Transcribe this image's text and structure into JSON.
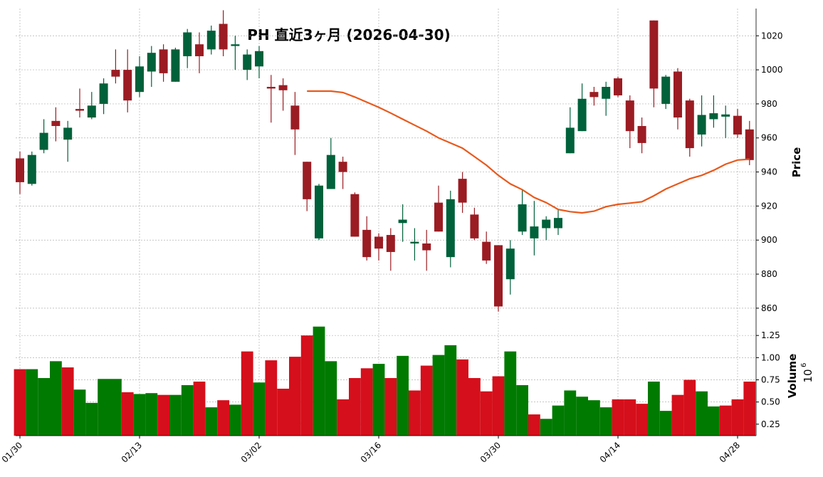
{
  "chart_data": {
    "type": "candlestick",
    "title": "PH  直近3ヶ月 (2026-04-30)",
    "ylabel": "Price",
    "volume_label": "Volume",
    "volume_scale": {
      "base": "10",
      "exponent": "6"
    },
    "x": [
      "01/30",
      null,
      null,
      null,
      null,
      null,
      null,
      null,
      null,
      null,
      "02/13",
      null,
      null,
      null,
      null,
      null,
      null,
      null,
      null,
      null,
      "03/02",
      null,
      null,
      null,
      null,
      null,
      null,
      null,
      null,
      null,
      "03/16",
      null,
      null,
      null,
      null,
      null,
      null,
      null,
      null,
      null,
      "03/30",
      null,
      null,
      null,
      null,
      null,
      null,
      null,
      null,
      null,
      "04/14",
      null,
      null,
      null,
      null,
      null,
      null,
      null,
      null,
      null,
      "04/28",
      null
    ],
    "open": [
      948,
      933,
      953,
      970,
      959,
      977,
      972,
      980,
      1000,
      1000,
      987,
      999,
      1012,
      993,
      1008,
      1015,
      1012,
      1027,
      1014,
      1000,
      1002,
      990,
      991,
      979,
      946,
      901,
      930,
      946,
      927,
      906,
      902,
      903,
      910,
      898,
      898,
      922,
      890,
      936,
      915,
      899,
      897,
      877,
      905,
      901,
      907,
      907,
      951,
      964,
      987,
      983,
      995,
      982,
      967,
      1029,
      980,
      999,
      982,
      962,
      971,
      972.5,
      973,
      965
    ],
    "high": [
      952,
      952,
      971,
      978,
      970,
      989,
      987,
      995,
      1012,
      1012,
      1008,
      1014,
      1015,
      1013,
      1024,
      1022,
      1026,
      1035,
      1020,
      1012,
      1014,
      997,
      995,
      987,
      946,
      933,
      960,
      949,
      928,
      914,
      904,
      907,
      921,
      907,
      906,
      932,
      929,
      940,
      919,
      905,
      897,
      900,
      930,
      923,
      914,
      918,
      978,
      992,
      990,
      993,
      996,
      985,
      972,
      1029,
      997,
      1001,
      983,
      985,
      985,
      979,
      977,
      970
    ],
    "low": [
      927,
      932,
      951,
      958,
      946,
      972,
      971,
      974,
      992,
      975,
      984,
      990,
      993,
      993,
      1001,
      998,
      1009,
      1008,
      1000,
      994,
      995,
      969,
      976,
      950,
      917,
      900,
      930,
      930,
      902,
      888,
      888,
      882,
      899,
      888,
      882,
      905,
      884,
      916,
      900,
      886,
      858,
      868,
      903,
      891,
      900,
      903,
      951,
      964,
      979,
      973,
      984,
      954,
      951,
      978,
      977,
      965,
      949,
      955,
      966,
      960,
      960,
      944
    ],
    "close": [
      934,
      950,
      963,
      967,
      966,
      976,
      979,
      992,
      996,
      982,
      1002,
      1010,
      998,
      1012,
      1022,
      1008,
      1023,
      1012,
      1015,
      1009,
      1011,
      989,
      988,
      965,
      924,
      932,
      950,
      940,
      902,
      890,
      895,
      893,
      912,
      899,
      894,
      905,
      924,
      922,
      901,
      888,
      861,
      895,
      921,
      908,
      912,
      913,
      966,
      983,
      984,
      990,
      985,
      964,
      957,
      989,
      996,
      972,
      954,
      973.5,
      974.5,
      973.8,
      962,
      947
    ],
    "volume": [
      0.87,
      0.87,
      0.77,
      0.96,
      0.89,
      0.64,
      0.49,
      0.76,
      0.76,
      0.61,
      0.59,
      0.6,
      0.58,
      0.58,
      0.69,
      0.73,
      0.44,
      0.52,
      0.47,
      1.07,
      0.72,
      0.97,
      0.65,
      1.01,
      1.25,
      1.35,
      0.96,
      0.53,
      0.77,
      0.88,
      0.93,
      0.77,
      1.02,
      0.63,
      0.91,
      1.03,
      1.14,
      0.98,
      0.77,
      0.62,
      0.79,
      1.07,
      0.69,
      0.36,
      0.31,
      0.46,
      0.63,
      0.56,
      0.52,
      0.44,
      0.53,
      0.53,
      0.48,
      0.73,
      0.4,
      0.58,
      0.75,
      0.62,
      0.45,
      0.46,
      0.53,
      0.73
    ],
    "moving_average": {
      "color": "#e8591c",
      "values": [
        null,
        null,
        null,
        null,
        null,
        null,
        null,
        null,
        null,
        null,
        null,
        null,
        null,
        null,
        null,
        null,
        null,
        null,
        null,
        null,
        null,
        null,
        null,
        null,
        987.5,
        987.5,
        987.5,
        986.7,
        984,
        981,
        978,
        974.6,
        971,
        967.5,
        964,
        960,
        957,
        954,
        949,
        944,
        938,
        933,
        929.6,
        925,
        922,
        918,
        916.7,
        916,
        917,
        919.6,
        921,
        921.7,
        922.5,
        926,
        930,
        933,
        936,
        938,
        941,
        944.6,
        947,
        947.5
      ]
    },
    "up_color": "#00613a",
    "down_color": "#9b1c23",
    "volume_up_color": "#007a00",
    "volume_down_color": "#d50f1b",
    "ylim": [
      852,
      1036
    ],
    "yticks": [
      860,
      880,
      900,
      920,
      940,
      960,
      980,
      1000,
      1020
    ],
    "volume_ylim": [
      0.12,
      1.38
    ],
    "volume_yticks": [
      0.25,
      {
        "value": 0.5,
        "label": "0.50"
      },
      0.75,
      {
        "value": 1.0,
        "label": "1.00"
      },
      1.25
    ],
    "grid": true
  }
}
